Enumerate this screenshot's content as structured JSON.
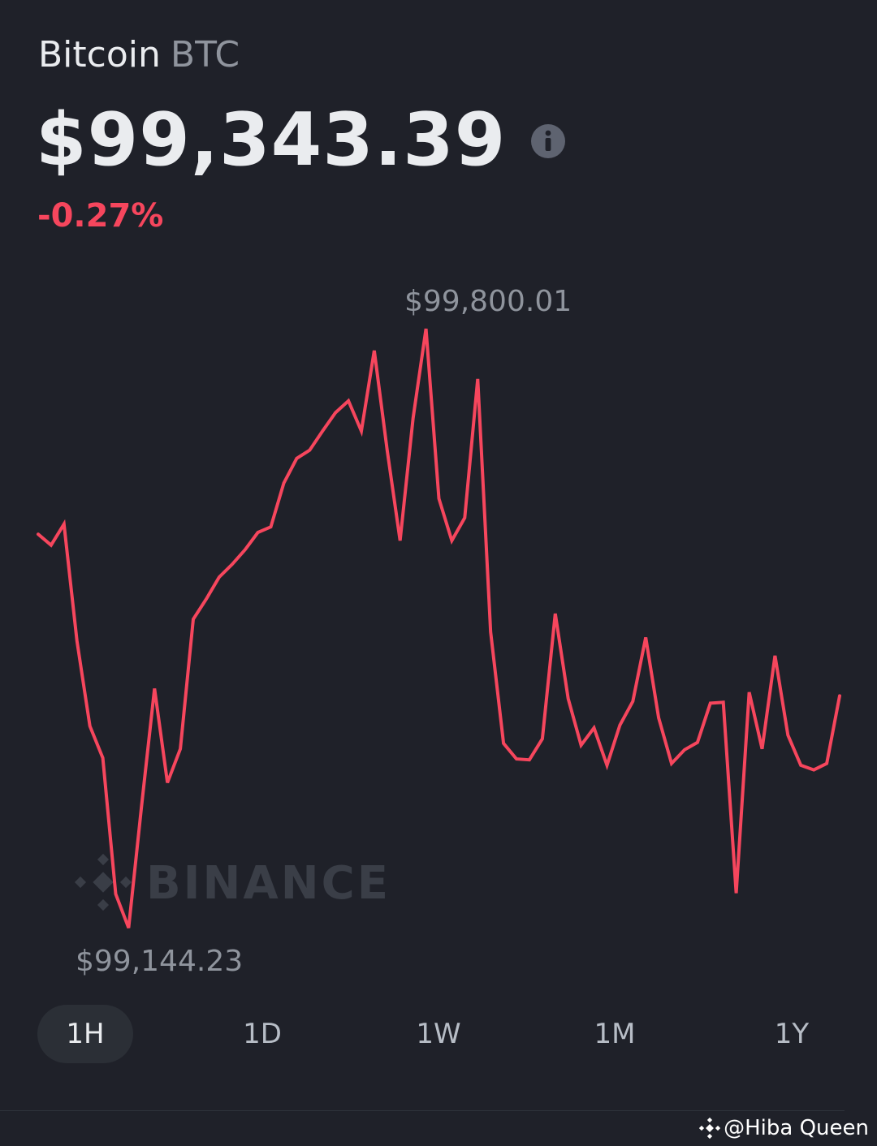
{
  "header": {
    "asset_name": "Bitcoin",
    "asset_symbol": "BTC",
    "price": "$99,343.39",
    "change_percent": "-0.27%"
  },
  "colors": {
    "background": "#1f2129",
    "line": "#f6465d",
    "negative": "#f6465d",
    "muted_text": "#8f949d",
    "watermark": "#3a3e47"
  },
  "icons": {
    "info": "info-circle-icon",
    "watermark_logo": "binance-logo-icon",
    "credit_logo": "binance-logo-icon"
  },
  "watermark": {
    "text": "BINANCE"
  },
  "chart_data": {
    "type": "line",
    "series": [
      {
        "values": [
          99575,
          99563,
          99586,
          99458,
          99365,
          99330,
          99181,
          99144,
          99278,
          99406,
          99303,
          99340,
          99482,
          99504,
          99528,
          99542,
          99558,
          99577,
          99583,
          99631,
          99658,
          99667,
          99688,
          99708,
          99721,
          99688,
          99776,
          99667,
          99568,
          99702,
          99800,
          99614,
          99568,
          99593,
          99745,
          99468,
          99346,
          99329,
          99328,
          99351,
          99488,
          99395,
          99344,
          99363,
          99322,
          99366,
          99392,
          99462,
          99374,
          99324,
          99339,
          99347,
          99390,
          99391,
          99182,
          99402,
          99340,
          99442,
          99355,
          99322,
          99317,
          99324,
          99398
        ]
      }
    ],
    "high_label": "$99,800.01",
    "low_label": "$99,144.23",
    "high_index": 30,
    "low_index": 7,
    "ylim": [
      99144.23,
      99800.01
    ],
    "grid": false,
    "legend": "none"
  },
  "timeframes": {
    "selected": "1H",
    "items": [
      {
        "label": "1H"
      },
      {
        "label": "1D"
      },
      {
        "label": "1W"
      },
      {
        "label": "1M"
      },
      {
        "label": "1Y"
      }
    ]
  },
  "credit": {
    "text": "@Hiba Queen"
  }
}
